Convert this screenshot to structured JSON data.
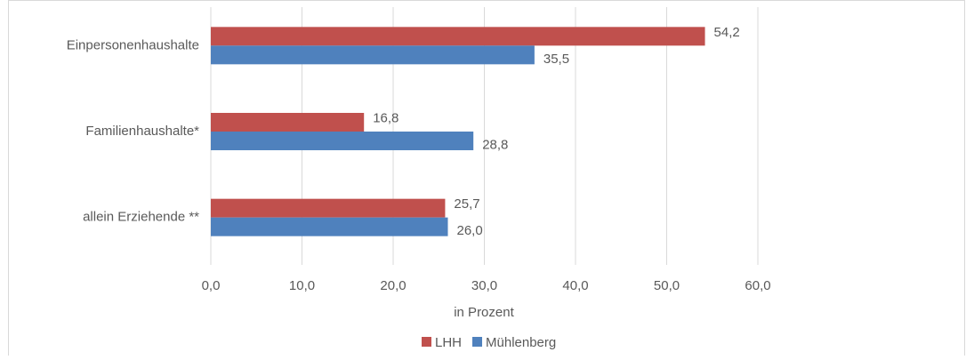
{
  "chart_data": {
    "type": "hbar",
    "categories": [
      "Einpersonenhaushalte",
      "Familienhaushalte*",
      "allein Erziehende **"
    ],
    "series": [
      {
        "name": "LHH",
        "color": "#c0504d",
        "values": [
          54.2,
          16.8,
          25.7
        ],
        "value_labels": [
          "54,2",
          "16,8",
          "25,7"
        ]
      },
      {
        "name": "Mühlenberg",
        "color": "#4f81bd",
        "values": [
          35.5,
          28.8,
          26.0
        ],
        "value_labels": [
          "35,5",
          "28,8",
          "26,0"
        ]
      }
    ],
    "xlim": [
      0,
      60
    ],
    "xticks": [
      {
        "value": 0,
        "label": "0,0"
      },
      {
        "value": 10,
        "label": "10,0"
      },
      {
        "value": 20,
        "label": "20,0"
      },
      {
        "value": 30,
        "label": "30,0"
      },
      {
        "value": 40,
        "label": "40,0"
      },
      {
        "value": 50,
        "label": "50,0"
      },
      {
        "value": 60,
        "label": "60,0"
      }
    ],
    "xlabel": "in Prozent",
    "grid": true,
    "legend": "bottom"
  }
}
